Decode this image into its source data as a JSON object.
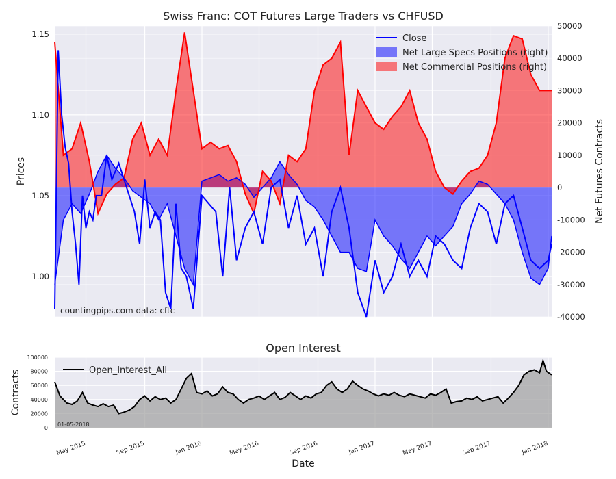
{
  "chart_data": [
    {
      "type": "line",
      "title": "Swiss Franc: COT Futures Large Traders vs CHFUSD",
      "ylabel_left": "Prices",
      "ylabel_right": "Net Futures Contracts",
      "ylim_left": [
        0.975,
        1.155
      ],
      "ylim_right": [
        -40000,
        50000
      ],
      "yticks_left": [
        "1.00",
        "1.05",
        "1.10",
        "1.15"
      ],
      "yticks_right": [
        "-40000",
        "-30000",
        "-20000",
        "-10000",
        "0",
        "10000",
        "20000",
        "30000",
        "40000",
        "50000"
      ],
      "x_range": [
        2015.15,
        2018.02
      ],
      "grid": true,
      "legend_position": "top-right",
      "annotation": "countingpips.com    data: cftc",
      "colors": {
        "close": "#0000ff",
        "specs": "#0000ff",
        "commercial": "#ff0000",
        "background": "#eaeaf2"
      },
      "series": [
        {
          "name": "Close",
          "axis": "left",
          "x": [
            2015.15,
            2015.17,
            2015.19,
            2015.21,
            2015.23,
            2015.25,
            2015.27,
            2015.29,
            2015.31,
            2015.33,
            2015.35,
            2015.37,
            2015.39,
            2015.42,
            2015.45,
            2015.48,
            2015.5,
            2015.52,
            2015.55,
            2015.58,
            2015.61,
            2015.64,
            2015.67,
            2015.7,
            2015.73,
            2015.76,
            2015.79,
            2015.82,
            2015.85,
            2015.88,
            2015.91,
            2015.95,
            2016.0,
            2016.04,
            2016.08,
            2016.12,
            2016.16,
            2016.2,
            2016.25,
            2016.3,
            2016.35,
            2016.4,
            2016.45,
            2016.5,
            2016.55,
            2016.6,
            2016.65,
            2016.7,
            2016.75,
            2016.8,
            2016.85,
            2016.9,
            2016.95,
            2017.0,
            2017.05,
            2017.1,
            2017.15,
            2017.2,
            2017.25,
            2017.3,
            2017.35,
            2017.4,
            2017.45,
            2017.5,
            2017.55,
            2017.6,
            2017.65,
            2017.7,
            2017.75,
            2017.8,
            2017.85,
            2017.9,
            2017.95,
            2018.0,
            2018.02
          ],
          "values": [
            0.98,
            1.14,
            1.1,
            1.08,
            1.07,
            1.04,
            1.02,
            0.995,
            1.05,
            1.03,
            1.04,
            1.035,
            1.05,
            1.05,
            1.075,
            1.06,
            1.065,
            1.07,
            1.06,
            1.05,
            1.04,
            1.02,
            1.06,
            1.03,
            1.04,
            1.035,
            0.99,
            0.98,
            1.045,
            1.005,
            1.0,
            0.98,
            1.05,
            1.045,
            1.04,
            1.0,
            1.055,
            1.01,
            1.03,
            1.04,
            1.02,
            1.055,
            1.06,
            1.03,
            1.05,
            1.02,
            1.03,
            1.0,
            1.04,
            1.055,
            1.03,
            0.99,
            0.975,
            1.01,
            0.99,
            1.0,
            1.02,
            1.0,
            1.01,
            1.0,
            1.025,
            1.02,
            1.01,
            1.005,
            1.03,
            1.045,
            1.04,
            1.02,
            1.045,
            1.05,
            1.03,
            1.01,
            1.005,
            1.01,
            1.02
          ]
        },
        {
          "name": "Net Large Specs Positions (right)",
          "axis": "right",
          "type": "area",
          "x": [
            2015.15,
            2015.2,
            2015.25,
            2015.3,
            2015.35,
            2015.4,
            2015.45,
            2015.5,
            2015.55,
            2015.6,
            2015.65,
            2015.7,
            2015.75,
            2015.8,
            2015.85,
            2015.9,
            2015.95,
            2016.0,
            2016.05,
            2016.1,
            2016.15,
            2016.2,
            2016.25,
            2016.3,
            2016.35,
            2016.4,
            2016.45,
            2016.5,
            2016.55,
            2016.6,
            2016.65,
            2016.7,
            2016.75,
            2016.8,
            2016.85,
            2016.9,
            2016.95,
            2017.0,
            2017.05,
            2017.1,
            2017.15,
            2017.2,
            2017.25,
            2017.3,
            2017.35,
            2017.4,
            2017.45,
            2017.5,
            2017.55,
            2017.6,
            2017.65,
            2017.7,
            2017.75,
            2017.8,
            2017.85,
            2017.9,
            2017.95,
            2018.0,
            2018.02
          ],
          "values": [
            -30000,
            -10000,
            -5000,
            -8000,
            -2000,
            5000,
            10000,
            6000,
            3000,
            -1000,
            -3000,
            -5000,
            -10000,
            -5000,
            -15000,
            -25000,
            -30000,
            2000,
            3000,
            4000,
            2000,
            3000,
            1000,
            -3000,
            0,
            3000,
            8000,
            4000,
            1000,
            -4000,
            -6000,
            -10000,
            -15000,
            -20000,
            -20000,
            -25000,
            -26000,
            -10000,
            -15000,
            -18000,
            -22000,
            -25000,
            -20000,
            -15000,
            -18000,
            -15000,
            -12000,
            -5000,
            -2000,
            2000,
            1000,
            -2000,
            -5000,
            -10000,
            -20000,
            -28000,
            -30000,
            -25000,
            -15000
          ]
        },
        {
          "name": "Net Commercial Positions (right)",
          "axis": "right",
          "type": "area",
          "x": [
            2015.15,
            2015.2,
            2015.25,
            2015.3,
            2015.35,
            2015.4,
            2015.45,
            2015.5,
            2015.55,
            2015.6,
            2015.65,
            2015.7,
            2015.75,
            2015.8,
            2015.85,
            2015.9,
            2015.95,
            2016.0,
            2016.05,
            2016.1,
            2016.15,
            2016.2,
            2016.25,
            2016.3,
            2016.35,
            2016.4,
            2016.45,
            2016.5,
            2016.55,
            2016.6,
            2016.65,
            2016.7,
            2016.75,
            2016.8,
            2016.85,
            2016.9,
            2016.95,
            2017.0,
            2017.05,
            2017.1,
            2017.15,
            2017.2,
            2017.25,
            2017.3,
            2017.35,
            2017.4,
            2017.45,
            2017.5,
            2017.55,
            2017.6,
            2017.65,
            2017.7,
            2017.75,
            2017.8,
            2017.85,
            2017.9,
            2017.95,
            2018.0,
            2018.02
          ],
          "values": [
            45000,
            10000,
            12000,
            20000,
            8000,
            -8000,
            -2000,
            1000,
            3000,
            15000,
            20000,
            10000,
            15000,
            10000,
            30000,
            48000,
            30000,
            12000,
            14000,
            12000,
            13000,
            8000,
            -2000,
            -8000,
            5000,
            2000,
            -5000,
            10000,
            8000,
            12000,
            30000,
            38000,
            40000,
            45000,
            10000,
            30000,
            25000,
            20000,
            18000,
            22000,
            25000,
            30000,
            20000,
            15000,
            5000,
            0,
            -2000,
            2000,
            5000,
            6000,
            10000,
            20000,
            40000,
            47000,
            46000,
            35000,
            30000,
            30000,
            30000
          ]
        }
      ]
    },
    {
      "type": "area",
      "title": "Open Interest",
      "xlabel": "Date",
      "ylabel": "Contracts",
      "ylim": [
        0,
        100000
      ],
      "yticks": [
        "0",
        "20000",
        "40000",
        "60000",
        "80000",
        "100000"
      ],
      "xticks": [
        "May 2015",
        "Sep 2015",
        "Jan 2016",
        "May 2016",
        "Sep 2016",
        "Jan 2017",
        "May 2017",
        "Sep 2017",
        "Jan 2018"
      ],
      "xtick_values": [
        2015.33,
        2015.67,
        2016.0,
        2016.33,
        2016.67,
        2017.0,
        2017.33,
        2017.67,
        2018.0
      ],
      "x_range": [
        2015.15,
        2018.02
      ],
      "grid": true,
      "legend_position": "top-left",
      "annotation": "01-05-2018",
      "colors": {
        "line": "#000000",
        "fill": "#a0a0a0",
        "background": "#eaeaf2"
      },
      "series": [
        {
          "name": "Open_Interest_All",
          "x": [
            2015.15,
            2015.18,
            2015.22,
            2015.25,
            2015.28,
            2015.31,
            2015.34,
            2015.37,
            2015.4,
            2015.43,
            2015.46,
            2015.49,
            2015.52,
            2015.55,
            2015.58,
            2015.61,
            2015.64,
            2015.67,
            2015.7,
            2015.73,
            2015.76,
            2015.79,
            2015.82,
            2015.85,
            2015.88,
            2015.91,
            2015.94,
            2015.97,
            2016.0,
            2016.03,
            2016.06,
            2016.09,
            2016.12,
            2016.15,
            2016.18,
            2016.21,
            2016.24,
            2016.27,
            2016.3,
            2016.33,
            2016.36,
            2016.39,
            2016.42,
            2016.45,
            2016.48,
            2016.51,
            2016.54,
            2016.57,
            2016.6,
            2016.63,
            2016.66,
            2016.69,
            2016.72,
            2016.75,
            2016.78,
            2016.81,
            2016.84,
            2016.87,
            2016.9,
            2016.93,
            2016.96,
            2016.99,
            2017.02,
            2017.05,
            2017.08,
            2017.11,
            2017.14,
            2017.17,
            2017.2,
            2017.23,
            2017.26,
            2017.29,
            2017.32,
            2017.35,
            2017.38,
            2017.41,
            2017.44,
            2017.47,
            2017.5,
            2017.53,
            2017.56,
            2017.59,
            2017.62,
            2017.65,
            2017.68,
            2017.71,
            2017.74,
            2017.77,
            2017.8,
            2017.83,
            2017.86,
            2017.89,
            2017.92,
            2017.95,
            2017.97,
            2017.99,
            2018.02
          ],
          "values": [
            65000,
            45000,
            35000,
            33000,
            38000,
            50000,
            35000,
            32000,
            30000,
            34000,
            30000,
            32000,
            20000,
            22000,
            25000,
            30000,
            40000,
            45000,
            38000,
            44000,
            40000,
            42000,
            35000,
            40000,
            55000,
            70000,
            77000,
            50000,
            48000,
            52000,
            45000,
            48000,
            58000,
            50000,
            48000,
            40000,
            35000,
            40000,
            42000,
            45000,
            40000,
            45000,
            50000,
            40000,
            43000,
            50000,
            45000,
            40000,
            45000,
            42000,
            48000,
            50000,
            60000,
            65000,
            55000,
            50000,
            55000,
            66000,
            60000,
            55000,
            52000,
            48000,
            45000,
            48000,
            46000,
            50000,
            46000,
            44000,
            48000,
            46000,
            44000,
            42000,
            48000,
            46000,
            50000,
            55000,
            35000,
            37000,
            38000,
            42000,
            40000,
            44000,
            38000,
            40000,
            42000,
            44000,
            35000,
            42000,
            50000,
            60000,
            75000,
            80000,
            82000,
            78000,
            95000,
            80000,
            75000
          ]
        }
      ]
    }
  ]
}
